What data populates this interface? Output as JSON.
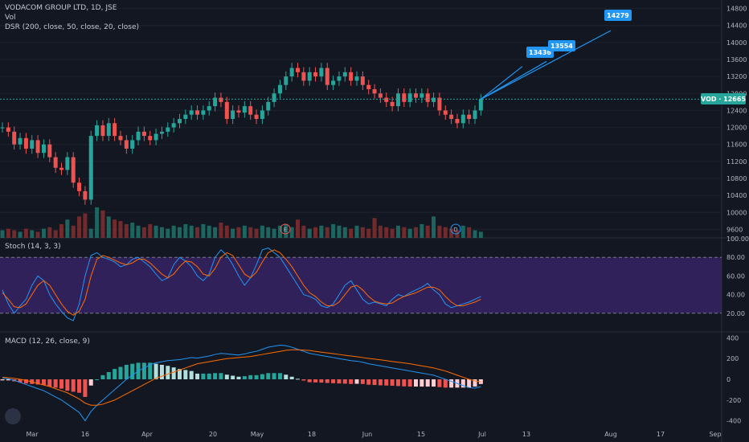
{
  "header": {
    "title": "VODACOM GROUP LTD, 1D, JSE",
    "vol_label": "Vol",
    "dsr_label": "DSR (200, close, 50, close, 20, close)",
    "stoch_label": "Stoch (14, 3, 3)",
    "macd_label": "MACD (12, 26, close, 9)"
  },
  "price_tag": {
    "symbol": "VOD",
    "value": "12665",
    "color": "#26a69a"
  },
  "targets": [
    {
      "label": "13436",
      "value": 13436
    },
    {
      "label": "13554",
      "value": 13554
    },
    {
      "label": "14279",
      "value": 14279
    }
  ],
  "event_markers": [
    "E",
    "D"
  ],
  "colors": {
    "up": "#26a69a",
    "down": "#ef5350",
    "bg": "#131722",
    "target_blue": "#2196f3",
    "stoch_band": "#4a2a8a",
    "ma_red": "#b71c1c",
    "ma_green": "#1b8f2a"
  },
  "chart_data": [
    {
      "type": "line",
      "title": "VODACOM GROUP LTD, 1D, JSE",
      "ylim": [
        9400,
        15000
      ],
      "y_ticks": [
        9600,
        10000,
        10400,
        10800,
        11200,
        11600,
        12000,
        12400,
        12800,
        13200,
        13600,
        14000,
        14400,
        14800
      ],
      "x_ticks": [
        "Mar",
        "16",
        "Apr",
        "20",
        "May",
        "18",
        "Jun",
        "15",
        "Jul",
        "13",
        "Aug",
        "17",
        "Sep"
      ],
      "last_close": 12665,
      "close_series": [
        12000,
        11900,
        11600,
        11750,
        11500,
        11700,
        11400,
        11600,
        11300,
        11050,
        11000,
        11300,
        10700,
        10500,
        10300,
        11800,
        12050,
        11800,
        12100,
        11800,
        11700,
        11500,
        11700,
        11900,
        11800,
        11700,
        11850,
        11900,
        12000,
        12100,
        12200,
        12300,
        12400,
        12300,
        12400,
        12500,
        12700,
        12600,
        12200,
        12400,
        12350,
        12500,
        12300,
        12200,
        12400,
        12600,
        12800,
        13000,
        13200,
        13400,
        13300,
        13100,
        13300,
        13200,
        13400,
        13000,
        13100,
        13200,
        13300,
        13100,
        13200,
        13000,
        12900,
        12800,
        12700,
        12600,
        12500,
        12800,
        12600,
        12800,
        12700,
        12800,
        12600,
        12700,
        12400,
        12300,
        12200,
        12100,
        12300,
        12200,
        12400,
        12665
      ]
    },
    {
      "type": "bar",
      "title": "Vol",
      "values": [
        5,
        6,
        5,
        4,
        6,
        5,
        4,
        6,
        7,
        5,
        9,
        12,
        8,
        14,
        16,
        6,
        20,
        18,
        14,
        12,
        11,
        9,
        10,
        8,
        7,
        9,
        8,
        7,
        6,
        8,
        7,
        9,
        8,
        7,
        9,
        8,
        7,
        10,
        8,
        6,
        7,
        8,
        7,
        6,
        8,
        7,
        6,
        8,
        9,
        7,
        12,
        8,
        6,
        7,
        8,
        7,
        9,
        8,
        7,
        6,
        8,
        7,
        6,
        13,
        8,
        7,
        6,
        8,
        7,
        6,
        7,
        9,
        8,
        14,
        8,
        7,
        6,
        5,
        8,
        7,
        5,
        4
      ]
    },
    {
      "type": "line",
      "title": "Stoch (14, 3, 3)",
      "ylim": [
        0,
        100
      ],
      "y_ticks": [
        20.0,
        40.0,
        60.0,
        80.0,
        100.0
      ],
      "band": [
        20,
        80
      ],
      "series": [
        {
          "name": "%K",
          "values": [
            45,
            30,
            20,
            28,
            35,
            50,
            60,
            55,
            40,
            30,
            22,
            15,
            12,
            30,
            60,
            82,
            85,
            80,
            78,
            75,
            70,
            72,
            78,
            80,
            75,
            70,
            62,
            55,
            58,
            72,
            80,
            76,
            70,
            60,
            55,
            62,
            80,
            88,
            82,
            72,
            60,
            50,
            58,
            72,
            88,
            90,
            85,
            80,
            70,
            60,
            50,
            40,
            38,
            35,
            28,
            26,
            30,
            40,
            50,
            55,
            45,
            35,
            30,
            32,
            30,
            28,
            35,
            40,
            38,
            42,
            45,
            48,
            52,
            45,
            40,
            30,
            26,
            28,
            30,
            32,
            35,
            38
          ]
        },
        {
          "name": "%D",
          "values": [
            42,
            35,
            27,
            26,
            30,
            40,
            50,
            55,
            50,
            40,
            30,
            22,
            18,
            22,
            35,
            60,
            78,
            82,
            80,
            77,
            74,
            72,
            74,
            78,
            78,
            74,
            68,
            62,
            58,
            62,
            70,
            76,
            75,
            70,
            62,
            60,
            68,
            80,
            85,
            82,
            72,
            62,
            58,
            64,
            75,
            85,
            88,
            85,
            78,
            70,
            60,
            50,
            42,
            38,
            32,
            28,
            28,
            32,
            40,
            48,
            50,
            45,
            38,
            33,
            31,
            30,
            31,
            35,
            38,
            40,
            42,
            45,
            48,
            48,
            45,
            38,
            32,
            28,
            28,
            30,
            32,
            35
          ]
        }
      ]
    },
    {
      "type": "bar",
      "title": "MACD (12, 26, close, 9)",
      "ylim": [
        -450,
        450
      ],
      "y_ticks": [
        -400,
        -200,
        0,
        200,
        400
      ],
      "series": [
        {
          "name": "MACD",
          "values": [
            10,
            5,
            -10,
            -30,
            -50,
            -70,
            -90,
            -110,
            -140,
            -170,
            -200,
            -240,
            -280,
            -320,
            -400,
            -310,
            -250,
            -200,
            -150,
            -100,
            -50,
            0,
            40,
            80,
            110,
            140,
            160,
            170,
            180,
            185,
            190,
            200,
            210,
            205,
            215,
            225,
            240,
            250,
            245,
            240,
            235,
            245,
            260,
            270,
            290,
            310,
            320,
            330,
            325,
            310,
            290,
            270,
            250,
            240,
            230,
            220,
            210,
            200,
            190,
            180,
            175,
            165,
            150,
            140,
            130,
            120,
            110,
            100,
            90,
            80,
            70,
            60,
            50,
            40,
            20,
            0,
            -20,
            -40,
            -60,
            -80,
            -85,
            -70
          ]
        },
        {
          "name": "Signal",
          "values": [
            20,
            15,
            10,
            0,
            -10,
            -25,
            -40,
            -55,
            -70,
            -90,
            -110,
            -130,
            -160,
            -190,
            -230,
            -250,
            -250,
            -240,
            -220,
            -200,
            -170,
            -140,
            -110,
            -80,
            -50,
            -20,
            10,
            30,
            50,
            70,
            90,
            110,
            130,
            150,
            160,
            170,
            180,
            190,
            200,
            205,
            210,
            215,
            220,
            230,
            240,
            250,
            260,
            270,
            280,
            285,
            285,
            282,
            278,
            270,
            262,
            255,
            248,
            240,
            232,
            225,
            218,
            210,
            202,
            195,
            188,
            180,
            172,
            165,
            158,
            150,
            140,
            130,
            120,
            110,
            95,
            80,
            60,
            40,
            20,
            0,
            -15,
            -25
          ]
        },
        {
          "name": "Histogram",
          "values": [
            -10,
            -10,
            -20,
            -30,
            -40,
            -45,
            -50,
            -55,
            -70,
            -80,
            -90,
            -110,
            -120,
            -130,
            -170,
            -60,
            0,
            40,
            70,
            100,
            120,
            140,
            150,
            160,
            160,
            160,
            150,
            140,
            130,
            115,
            100,
            90,
            80,
            55,
            55,
            55,
            60,
            60,
            45,
            35,
            25,
            30,
            40,
            40,
            50,
            60,
            60,
            60,
            45,
            25,
            5,
            -12,
            -28,
            -30,
            -32,
            -35,
            -38,
            -40,
            -42,
            -45,
            -43,
            -45,
            -52,
            -55,
            -58,
            -60,
            -62,
            -65,
            -68,
            -70,
            -70,
            -70,
            -70,
            -70,
            -75,
            -80,
            -80,
            -80,
            -80,
            -80,
            -70,
            -45
          ]
        }
      ]
    }
  ]
}
